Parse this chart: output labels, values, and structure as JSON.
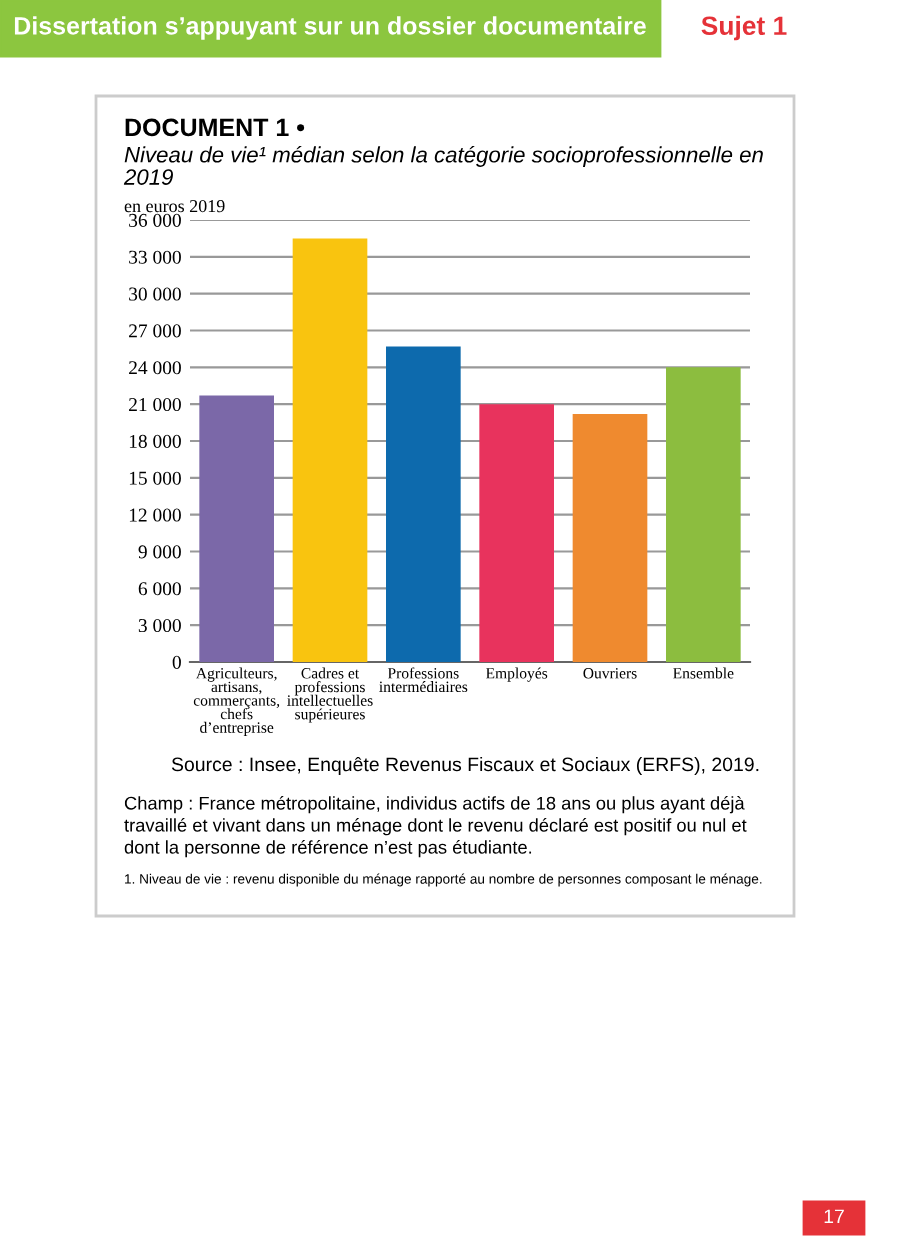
{
  "chart_data": {
    "type": "bar",
    "title": "DOCUMENT 1 •",
    "subtitle": "Niveau de vie¹ médian selon la catégorie socioprofessionnelle en 2019",
    "ylabel": "en euros 2019",
    "categories": [
      "Agriculteurs,\nartisans,\ncommerçants,\nchefs\nd’entreprise",
      "Cadres et\nprofessions\nintellectuelles\nsupérieures",
      "Professions\nintermédiaires",
      "Employés",
      "Ouvriers",
      "Ensemble"
    ],
    "values": [
      21700,
      34500,
      25700,
      21000,
      20200,
      24000
    ],
    "colors": [
      "#7b68a8",
      "#f9c40f",
      "#0d6aad",
      "#e8335d",
      "#ef8a2f",
      "#8cbd3f"
    ],
    "ylim": [
      0,
      36000
    ],
    "yticks": [
      0,
      {
        "value": 3000,
        "label": "3 000"
      },
      {
        "value": 6000,
        "label": "6 000"
      },
      {
        "value": 9000,
        "label": "9 000"
      },
      {
        "value": 12000,
        "label": "12 000"
      },
      {
        "value": 15000,
        "label": "15 000"
      },
      {
        "value": 18000,
        "label": "18 000"
      },
      {
        "value": 21000,
        "label": "21 000"
      },
      {
        "value": 24000,
        "label": "24 000"
      },
      {
        "value": 27000,
        "label": "27 000"
      },
      {
        "value": 30000,
        "label": "30 000"
      },
      {
        "value": 33000,
        "label": "33 000"
      },
      {
        "value": 36000,
        "label": "36 000"
      }
    ],
    "grid": "y",
    "annotations": [
      "Dissertation s’appuyant sur un dossier documentaire",
      "Sujet 1",
      "Source : Insee, Enquête Revenus Fiscaux et Sociaux (ERFS), 2019.",
      "Champ : France métropolitaine, individus actifs de 18 ans ou plus ayant déjà travaillé et vivant dans un ménage dont le revenu déclaré est positif ou nul et dont la personne de référence n’est pas étudiante.",
      "1. Niveau de vie : revenu disponible du ménage rapporté au nombre de personnes composant le ménage.",
      "17"
    ]
  }
}
